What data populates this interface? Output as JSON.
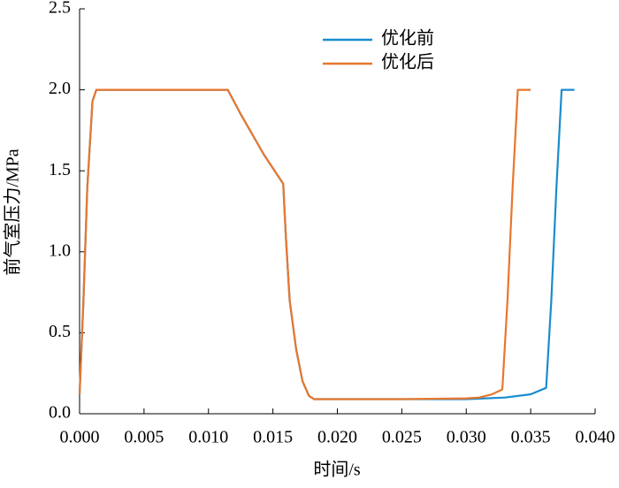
{
  "chart_data": {
    "type": "line",
    "xlabel": "时间/s",
    "ylabel": "前气室压力/MPa",
    "xlim": [
      0,
      0.04
    ],
    "ylim": [
      0,
      2.5
    ],
    "xticks": [
      {
        "value": 0,
        "label": "0.000"
      },
      {
        "value": 0.005,
        "label": "0.005"
      },
      {
        "value": 0.01,
        "label": "0.010"
      },
      {
        "value": 0.015,
        "label": "0.015"
      },
      {
        "value": 0.02,
        "label": "0.020"
      },
      {
        "value": 0.025,
        "label": "0.025"
      },
      {
        "value": 0.03,
        "label": "0.030"
      },
      {
        "value": 0.035,
        "label": "0.035"
      },
      {
        "value": 0.04,
        "label": "0.040"
      }
    ],
    "yticks": [
      {
        "value": 0,
        "label": "0.0"
      },
      0.5,
      {
        "value": 1,
        "label": "1.0"
      },
      1.5,
      {
        "value": 2,
        "label": "2.0"
      },
      2.5
    ],
    "legend": "upper center",
    "series": [
      {
        "name": "优化前",
        "color": "#1a8ccf",
        "x": [
          0,
          0.0003,
          0.0006,
          0.001,
          0.0013,
          0.005,
          0.0115,
          0.0125,
          0.0143,
          0.0158,
          0.016,
          0.0163,
          0.0168,
          0.0173,
          0.0178,
          0.0182,
          0.02,
          0.025,
          0.03,
          0.033,
          0.035,
          0.0362,
          0.0366,
          0.037,
          0.0374,
          0.0384
        ],
        "values": [
          0.12,
          0.7,
          1.4,
          1.93,
          2.0,
          2.0,
          2.0,
          1.85,
          1.6,
          1.42,
          1.1,
          0.7,
          0.4,
          0.2,
          0.11,
          0.09,
          0.09,
          0.09,
          0.09,
          0.1,
          0.12,
          0.16,
          0.7,
          1.4,
          2.0,
          2.0
        ]
      },
      {
        "name": "优化后",
        "color": "#e8772e",
        "x": [
          0,
          0.0003,
          0.0006,
          0.001,
          0.0013,
          0.005,
          0.0115,
          0.0125,
          0.0143,
          0.0158,
          0.016,
          0.0163,
          0.0168,
          0.0173,
          0.0178,
          0.0182,
          0.02,
          0.025,
          0.03,
          0.031,
          0.032,
          0.0328,
          0.0332,
          0.0336,
          0.034,
          0.035
        ],
        "values": [
          0.12,
          0.7,
          1.4,
          1.93,
          2.0,
          2.0,
          2.0,
          1.85,
          1.6,
          1.42,
          1.1,
          0.7,
          0.4,
          0.2,
          0.11,
          0.09,
          0.09,
          0.09,
          0.095,
          0.1,
          0.12,
          0.15,
          0.7,
          1.4,
          2.0,
          2.0
        ]
      }
    ]
  }
}
